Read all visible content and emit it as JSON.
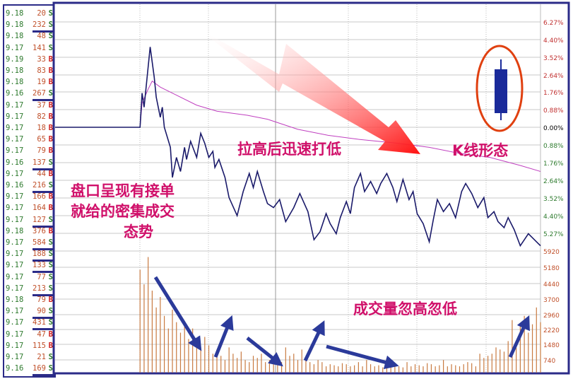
{
  "tick_list": [
    {
      "price": "9.18",
      "vol": "20",
      "side": "S",
      "big": false
    },
    {
      "price": "9.18",
      "vol": "232",
      "side": "S",
      "big": true
    },
    {
      "price": "9.18",
      "vol": "48",
      "side": "S",
      "big": false
    },
    {
      "price": "9.17",
      "vol": "141",
      "side": "S",
      "big": false
    },
    {
      "price": "9.19",
      "vol": "33",
      "side": "B",
      "big": false
    },
    {
      "price": "9.18",
      "vol": "83",
      "side": "B",
      "big": false
    },
    {
      "price": "9.18",
      "vol": "19",
      "side": "B",
      "big": false
    },
    {
      "price": "9.16",
      "vol": "267",
      "side": "S",
      "big": true
    },
    {
      "price": "9.17",
      "vol": "37",
      "side": "B",
      "big": false
    },
    {
      "price": "9.17",
      "vol": "82",
      "side": "B",
      "big": false
    },
    {
      "price": "9.17",
      "vol": "18",
      "side": "B",
      "big": false
    },
    {
      "price": "9.17",
      "vol": "65",
      "side": "B",
      "big": false
    },
    {
      "price": "9.17",
      "vol": "79",
      "side": "B",
      "big": false
    },
    {
      "price": "9.16",
      "vol": "137",
      "side": "S",
      "big": true
    },
    {
      "price": "9.17",
      "vol": "44",
      "side": "B",
      "big": false
    },
    {
      "price": "9.16",
      "vol": "216",
      "side": "S",
      "big": true
    },
    {
      "price": "9.17",
      "vol": "166",
      "side": "B",
      "big": false
    },
    {
      "price": "9.17",
      "vol": "164",
      "side": "B",
      "big": false
    },
    {
      "price": "9.17",
      "vol": "127",
      "side": "S",
      "big": true
    },
    {
      "price": "9.18",
      "vol": "376",
      "side": "B",
      "big": false
    },
    {
      "price": "9.17",
      "vol": "584",
      "side": "S",
      "big": true
    },
    {
      "price": "9.17",
      "vol": "188",
      "side": "S",
      "big": true
    },
    {
      "price": "9.17",
      "vol": "133",
      "side": "S",
      "big": true
    },
    {
      "price": "9.17",
      "vol": "77",
      "side": "S",
      "big": false
    },
    {
      "price": "9.17",
      "vol": "213",
      "side": "S",
      "big": true
    },
    {
      "price": "9.18",
      "vol": "79",
      "side": "B",
      "big": false
    },
    {
      "price": "9.17",
      "vol": "90",
      "side": "S",
      "big": true
    },
    {
      "price": "9.17",
      "vol": "431",
      "side": "S",
      "big": true
    },
    {
      "price": "9.17",
      "vol": "47",
      "side": "B",
      "big": false
    },
    {
      "price": "9.17",
      "vol": "115",
      "side": "B",
      "big": false
    },
    {
      "price": "9.17",
      "vol": "21",
      "side": "S",
      "big": false
    },
    {
      "price": "9.16",
      "vol": "169",
      "side": "S",
      "big": true
    }
  ],
  "colors": {
    "buy": "#d02020",
    "sell": "#2d7a2d",
    "price_line": "#1a1a6a",
    "avg_line": "#c040c0",
    "volume": "#c87a40",
    "frame": "#2b2b88",
    "annotation": "#d0106a",
    "arrow": "#2b3a9a"
  },
  "annotations": {
    "pull_down": "拉高后迅速打低",
    "k_shape": "K线形态",
    "tape_line1": "盘口呈现有接单",
    "tape_line2": "就给的密集成交",
    "tape_line3": "态势",
    "volume_note": "成交量忽高忽低"
  },
  "chart_data": {
    "type": "line",
    "pct_ticks_up": [
      "6.27%",
      "4.40%",
      "3.52%",
      "2.64%",
      "1.76%",
      "0.88%"
    ],
    "pct_zero": "0.00%",
    "pct_ticks_down": [
      "0.88%",
      "1.76%",
      "2.64%",
      "3.52%",
      "4.40%",
      "5.27%"
    ],
    "volume_ticks": [
      "5920",
      "5180",
      "4440",
      "3700",
      "2960",
      "2220",
      "1480",
      "740"
    ],
    "price_pct": [
      [
        0,
        0
      ],
      [
        42,
        0
      ],
      [
        43,
        1.7
      ],
      [
        44,
        1.0
      ],
      [
        45,
        2.0
      ],
      [
        46,
        3.0
      ],
      [
        47,
        4.0
      ],
      [
        49,
        2.5
      ],
      [
        50,
        1.5
      ],
      [
        52,
        0.5
      ],
      [
        53,
        1.0
      ],
      [
        54,
        0
      ],
      [
        57,
        -1.0
      ],
      [
        58,
        -2.5
      ],
      [
        60,
        -1.5
      ],
      [
        62,
        -2.2
      ],
      [
        64,
        -1.0
      ],
      [
        65,
        -1.6
      ],
      [
        67,
        -0.7
      ],
      [
        70,
        -1.5
      ],
      [
        72,
        -0.3
      ],
      [
        74,
        -0.8
      ],
      [
        76,
        -1.5
      ],
      [
        78,
        -1.2
      ],
      [
        79,
        -2.0
      ],
      [
        81,
        -1.6
      ],
      [
        84,
        -2.5
      ],
      [
        86,
        -3.5
      ],
      [
        90,
        -4.4
      ],
      [
        93,
        -3.2
      ],
      [
        96,
        -2.3
      ],
      [
        98,
        -3.0
      ],
      [
        100,
        -2.2
      ],
      [
        103,
        -3.2
      ],
      [
        105,
        -3.8
      ],
      [
        108,
        -4.0
      ],
      [
        111,
        -3.6
      ],
      [
        114,
        -4.7
      ],
      [
        118,
        -4.0
      ],
      [
        121,
        -3.3
      ],
      [
        125,
        -4.2
      ],
      [
        128,
        -5.6
      ],
      [
        131,
        -5.2
      ],
      [
        134,
        -4.3
      ],
      [
        136,
        -4.8
      ],
      [
        139,
        -5.3
      ],
      [
        141,
        -4.5
      ],
      [
        144,
        -3.7
      ],
      [
        146,
        -4.3
      ],
      [
        148,
        -3.0
      ],
      [
        151,
        -2.3
      ],
      [
        153,
        -3.2
      ],
      [
        156,
        -2.7
      ],
      [
        159,
        -3.3
      ],
      [
        161,
        -2.8
      ],
      [
        164,
        -2.3
      ],
      [
        167,
        -3.0
      ],
      [
        169,
        -3.7
      ],
      [
        172,
        -2.6
      ],
      [
        175,
        -3.6
      ],
      [
        177,
        -3.2
      ],
      [
        179,
        -4.3
      ],
      [
        182,
        -4.8
      ],
      [
        185,
        -5.7
      ],
      [
        187,
        -4.6
      ],
      [
        189,
        -3.6
      ],
      [
        192,
        -4.2
      ],
      [
        195,
        -3.8
      ],
      [
        198,
        -4.5
      ],
      [
        201,
        -3.2
      ],
      [
        203,
        -2.8
      ],
      [
        206,
        -3.3
      ],
      [
        209,
        -4.0
      ],
      [
        212,
        -3.5
      ],
      [
        214,
        -4.5
      ],
      [
        217,
        -4.2
      ],
      [
        219,
        -4.7
      ],
      [
        222,
        -5.0
      ],
      [
        224,
        -4.5
      ],
      [
        227,
        -5.1
      ],
      [
        230,
        -5.9
      ],
      [
        232,
        -5.6
      ],
      [
        234,
        -5.3
      ],
      [
        237,
        -5.6
      ],
      [
        240,
        -5.9
      ]
    ],
    "avg_pct": [
      [
        0,
        0
      ],
      [
        42,
        0
      ],
      [
        43,
        1.2
      ],
      [
        46,
        1.9
      ],
      [
        48,
        2.3
      ],
      [
        52,
        2.0
      ],
      [
        60,
        1.6
      ],
      [
        70,
        1.1
      ],
      [
        80,
        0.8
      ],
      [
        95,
        0.6
      ],
      [
        105,
        0.4
      ],
      [
        120,
        -0.1
      ],
      [
        135,
        -0.4
      ],
      [
        150,
        -0.6
      ],
      [
        170,
        -0.8
      ],
      [
        185,
        -1.0
      ],
      [
        200,
        -1.3
      ],
      [
        215,
        -1.5
      ],
      [
        230,
        -1.9
      ],
      [
        240,
        -2.2
      ]
    ],
    "volume_start_minute": 42,
    "volume_step_minutes": 2,
    "volume": [
      4900,
      4200,
      5500,
      3900,
      3100,
      3600,
      2700,
      2100,
      3000,
      2400,
      1900,
      2300,
      1600,
      2100,
      1500,
      1200,
      1700,
      1300,
      900,
      1100,
      800,
      600,
      1200,
      900,
      700,
      1000,
      600,
      500,
      800,
      700,
      900,
      500,
      600,
      400,
      700,
      500,
      1200,
      800,
      900,
      600,
      1100,
      700,
      500,
      400,
      600,
      500,
      300,
      400,
      350,
      300,
      450,
      400,
      300,
      350,
      500,
      300,
      600,
      400,
      300,
      350,
      250,
      300,
      400,
      350,
      300,
      250,
      500,
      300,
      400,
      350,
      300,
      450,
      400,
      300,
      350,
      600,
      300,
      400,
      350,
      300,
      400,
      500,
      450,
      300,
      900,
      700,
      800,
      900,
      1200,
      1100,
      1000,
      1500,
      2500,
      1200,
      2200,
      2700,
      1900,
      2300,
      3100,
      2400
    ]
  }
}
